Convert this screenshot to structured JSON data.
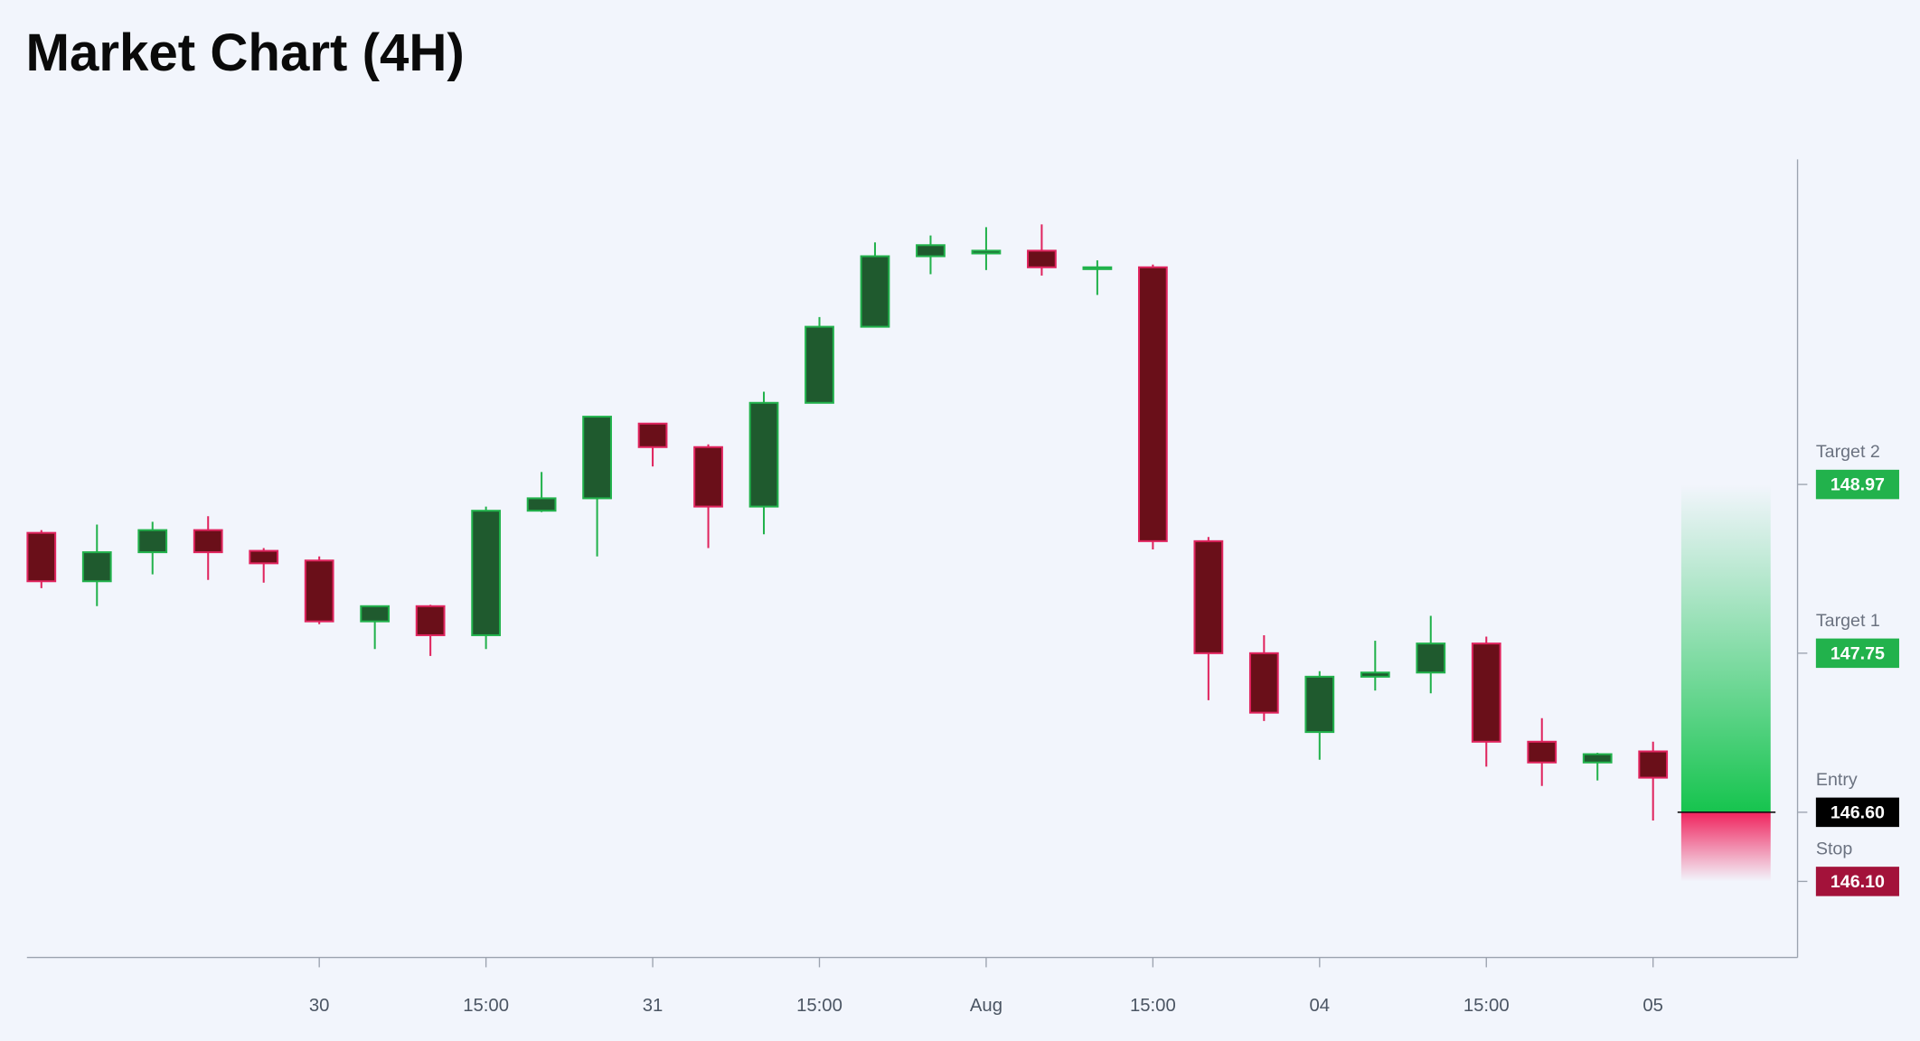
{
  "chart_data": {
    "type": "candlestick",
    "title": "Market Chart (4H)",
    "x": [
      0,
      1,
      2,
      3,
      4,
      5,
      6,
      7,
      8,
      9,
      10,
      11,
      12,
      13,
      14,
      15,
      16,
      17,
      18,
      19,
      20,
      21,
      22,
      23,
      24,
      25,
      26,
      27,
      28,
      29
    ],
    "open": [
      148.62,
      148.27,
      148.48,
      148.64,
      148.49,
      148.42,
      147.98,
      148.09,
      147.88,
      148.78,
      148.87,
      149.41,
      149.24,
      148.81,
      149.56,
      150.11,
      150.62,
      150.64,
      150.66,
      150.53,
      150.54,
      148.56,
      147.75,
      147.18,
      147.58,
      147.61,
      147.82,
      147.11,
      146.96,
      147.04
    ],
    "high": [
      148.64,
      148.68,
      148.7,
      148.74,
      148.51,
      148.45,
      148.09,
      148.1,
      148.81,
      149.06,
      149.46,
      149.41,
      149.26,
      149.64,
      150.18,
      150.72,
      150.77,
      150.83,
      150.85,
      150.59,
      150.56,
      148.59,
      147.88,
      147.62,
      147.84,
      148.02,
      147.87,
      147.28,
      147.03,
      147.11
    ],
    "low": [
      148.22,
      148.09,
      148.32,
      148.28,
      148.26,
      147.96,
      147.78,
      147.73,
      147.78,
      148.77,
      148.45,
      149.1,
      148.51,
      148.61,
      149.56,
      150.11,
      150.49,
      150.52,
      150.48,
      150.34,
      148.5,
      147.41,
      147.26,
      146.98,
      147.48,
      147.46,
      146.93,
      146.79,
      146.83,
      146.54
    ],
    "close": [
      148.27,
      148.48,
      148.64,
      148.48,
      148.4,
      147.98,
      148.09,
      147.88,
      148.78,
      148.87,
      149.46,
      149.24,
      148.81,
      149.56,
      150.11,
      150.62,
      150.7,
      150.66,
      150.54,
      150.54,
      148.56,
      147.75,
      147.32,
      147.58,
      147.61,
      147.82,
      147.11,
      146.96,
      147.02,
      146.85
    ],
    "up_color": "#22b24c",
    "up_fill": "#1f5a2e",
    "down_color": "#e0245e",
    "down_fill": "#6a0f19",
    "xlim": [
      -0.26,
      31.6
    ],
    "ylim": [
      145.55,
      151.32
    ],
    "xticks": [
      {
        "value": 5,
        "label": "30"
      },
      {
        "value": 8,
        "label": "15:00"
      },
      {
        "value": 11,
        "label": "31"
      },
      {
        "value": 14,
        "label": "15:00"
      },
      {
        "value": 17,
        "label": "Aug"
      },
      {
        "value": 20,
        "label": "15:00"
      },
      {
        "value": 23,
        "label": "04"
      },
      {
        "value": 26,
        "label": "15:00"
      },
      {
        "value": 29,
        "label": "05"
      }
    ],
    "levels": [
      {
        "name": "Target 2",
        "value": 148.97,
        "label": "148.97",
        "color": "#22b24c"
      },
      {
        "name": "Target 1",
        "value": 147.75,
        "label": "147.75",
        "color": "#22b24c"
      },
      {
        "name": "Entry",
        "value": 146.6,
        "label": "146.60",
        "color": "#000000"
      },
      {
        "name": "Stop",
        "value": 146.1,
        "label": "146.10",
        "color": "#a3123a"
      }
    ]
  }
}
